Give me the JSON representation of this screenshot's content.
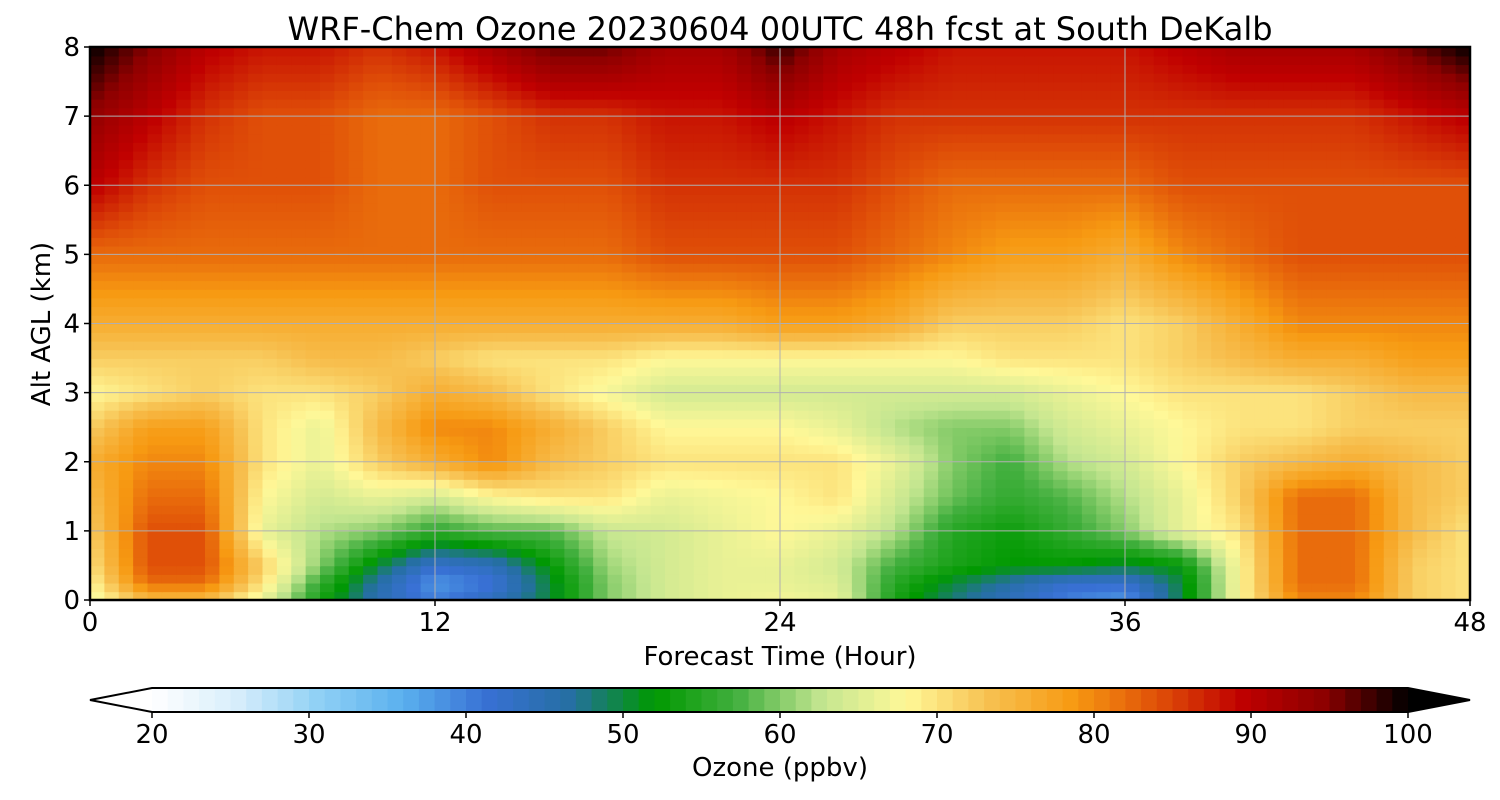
{
  "chart_data": {
    "type": "heatmap",
    "title": "WRF-Chem Ozone  20230604 00UTC 48h fcst at South DeKalb",
    "xlabel": "Forecast Time (Hour)",
    "ylabel": "Alt AGL (km)",
    "xlim": [
      0,
      48
    ],
    "ylim": [
      0,
      8
    ],
    "x_ticks": [
      0,
      12,
      24,
      36,
      48
    ],
    "y_ticks": [
      0,
      1,
      2,
      3,
      4,
      5,
      6,
      7,
      8
    ],
    "grid": true,
    "x": [
      0,
      2,
      4,
      6,
      8,
      10,
      12,
      14,
      16,
      18,
      20,
      22,
      24,
      26,
      28,
      30,
      32,
      34,
      36,
      38,
      40,
      42,
      44,
      46,
      48
    ],
    "y": [
      0,
      0.25,
      0.5,
      1,
      1.5,
      2,
      2.5,
      3,
      3.5,
      4,
      5,
      6,
      7,
      8
    ],
    "z": [
      [
        66,
        74,
        74,
        66,
        54,
        45,
        40,
        44,
        50,
        60,
        64,
        66,
        67,
        66,
        54,
        48,
        44,
        40,
        38,
        50,
        68,
        80,
        80,
        72,
        70
      ],
      [
        68,
        82,
        82,
        70,
        56,
        46,
        38,
        41,
        50,
        60,
        64,
        66,
        66,
        65,
        55,
        50,
        46,
        42,
        42,
        50,
        68,
        82,
        82,
        72,
        70
      ],
      [
        70,
        84,
        84,
        72,
        60,
        50,
        42,
        44,
        52,
        61,
        64,
        66,
        66,
        64,
        57,
        54,
        52,
        52,
        50,
        52,
        68,
        82,
        82,
        72,
        70
      ],
      [
        72,
        84,
        84,
        66,
        62,
        60,
        56,
        58,
        58,
        63,
        64,
        66,
        68,
        66,
        62,
        55,
        53,
        56,
        60,
        66,
        70,
        82,
        82,
        74,
        70
      ],
      [
        74,
        82,
        82,
        68,
        64,
        66,
        64,
        68,
        70,
        70,
        66,
        67,
        68,
        70,
        64,
        59,
        56,
        58,
        62,
        66,
        72,
        82,
        82,
        74,
        72
      ],
      [
        76,
        80,
        80,
        70,
        66,
        72,
        76,
        80,
        74,
        72,
        70,
        70,
        70,
        70,
        66,
        60,
        57,
        62,
        64,
        68,
        72,
        74,
        76,
        74,
        72
      ],
      [
        72,
        78,
        78,
        70,
        66,
        74,
        80,
        80,
        76,
        72,
        68,
        68,
        68,
        66,
        62,
        60,
        60,
        64,
        66,
        68,
        70,
        70,
        72,
        72,
        72
      ],
      [
        68,
        70,
        72,
        70,
        70,
        72,
        76,
        74,
        70,
        67,
        64,
        64,
        64,
        64,
        64,
        64,
        64,
        66,
        68,
        70,
        70,
        70,
        72,
        74,
        74
      ],
      [
        72,
        72,
        72,
        72,
        74,
        74,
        72,
        70,
        70,
        70,
        68,
        68,
        68,
        68,
        68,
        68,
        70,
        70,
        70,
        72,
        74,
        76,
        76,
        78,
        78
      ],
      [
        76,
        76,
        76,
        76,
        76,
        76,
        76,
        76,
        76,
        76,
        76,
        76,
        78,
        78,
        76,
        72,
        72,
        72,
        70,
        72,
        76,
        80,
        80,
        80,
        80
      ],
      [
        82,
        82,
        82,
        82,
        82,
        82,
        82,
        82,
        82,
        82,
        84,
        84,
        84,
        84,
        82,
        80,
        78,
        78,
        76,
        80,
        82,
        84,
        84,
        84,
        84
      ],
      [
        90,
        86,
        84,
        84,
        84,
        82,
        82,
        84,
        84,
        84,
        86,
        86,
        86,
        86,
        84,
        82,
        82,
        82,
        82,
        84,
        84,
        84,
        84,
        84,
        84
      ],
      [
        94,
        90,
        86,
        84,
        84,
        82,
        82,
        84,
        86,
        86,
        88,
        88,
        90,
        88,
        86,
        86,
        86,
        86,
        86,
        86,
        86,
        86,
        86,
        88,
        90
      ],
      [
        100,
        95,
        90,
        88,
        88,
        86,
        88,
        92,
        96,
        96,
        92,
        92,
        98,
        92,
        90,
        88,
        88,
        88,
        88,
        90,
        92,
        92,
        92,
        96,
        100
      ]
    ],
    "colorbar": {
      "label": "Ozone  (ppbv)",
      "min": 20,
      "max": 100,
      "ticks": [
        20,
        30,
        40,
        50,
        60,
        70,
        80,
        90,
        100
      ],
      "extend": "both",
      "orientation": "horizontal",
      "colors": [
        "#ffffff",
        "#d8eefb",
        "#8fd0f5",
        "#5ab0ee",
        "#3870d4",
        "#256fa2",
        "#009900",
        "#44b040",
        "#c4e690",
        "#fff898",
        "#f7c050",
        "#f79a12",
        "#e05008",
        "#c00000",
        "#8c0000",
        "#000000"
      ]
    }
  }
}
